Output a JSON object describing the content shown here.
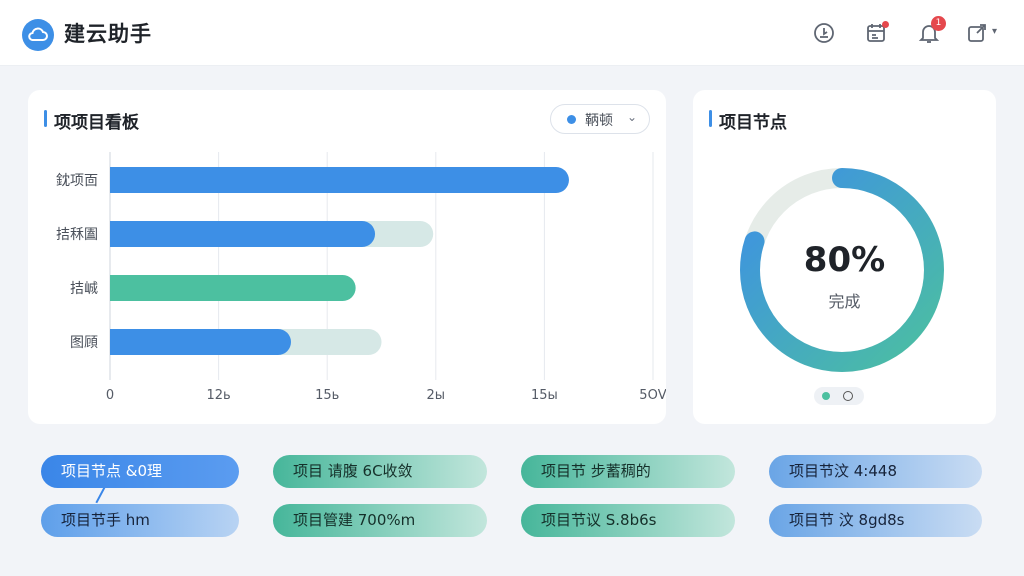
{
  "app": {
    "title": "建云助手"
  },
  "header": {
    "icons": [
      "download-icon",
      "calendar-icon",
      "bell-icon",
      "share-icon"
    ],
    "bell_badge": "1"
  },
  "board": {
    "title": "项项目看板",
    "dropdown": {
      "label": "鞆顿",
      "chevron": "⌄"
    },
    "chart_data": {
      "type": "bar",
      "orientation": "horizontal",
      "categories": [
        "鈂项靣",
        "拮秝圔",
        "拮峸",
        "图頋"
      ],
      "series": [
        {
          "values": [
            355,
            205,
            190,
            140
          ],
          "color": "#3d8fe6"
        },
        {
          "values": [
            0,
            250,
            0,
            210
          ],
          "color": "#d6e8e6"
        }
      ],
      "accent_colors": [
        "#3d8fe6",
        "#3d8fe6",
        "#4cc0a0",
        "#3d8fe6"
      ],
      "x_ticks": [
        "0",
        "12ь",
        "15ь",
        "2ы",
        "15ы",
        "5ОV"
      ],
      "xlim": [
        0,
        420
      ],
      "grid": true,
      "title": "项项目看板"
    }
  },
  "nodes": {
    "title": "项目节点",
    "percent_text": "80%",
    "sub_label": "完成",
    "percent_value": 0.8,
    "colors": {
      "arc_start": "#4cc0a0",
      "arc_end": "#3d8fe6",
      "track": "#e6ece8"
    }
  },
  "pills": [
    {
      "text": "项目节点 &0理",
      "style": "blue-strong"
    },
    {
      "text": "项目节手 hm",
      "style": "blue"
    },
    {
      "text": "项目 请腹 6C收敛",
      "style": "teal"
    },
    {
      "text": "项目管建 700%m",
      "style": "teal"
    },
    {
      "text": "项目节 步蓄稠的",
      "style": "teal"
    },
    {
      "text": "项目节议 S.8b6s",
      "style": "teal"
    },
    {
      "text": "项目节汶 4:448",
      "style": "blue-light"
    },
    {
      "text": "项目节 汶 8gd8s",
      "style": "blue-light"
    }
  ]
}
